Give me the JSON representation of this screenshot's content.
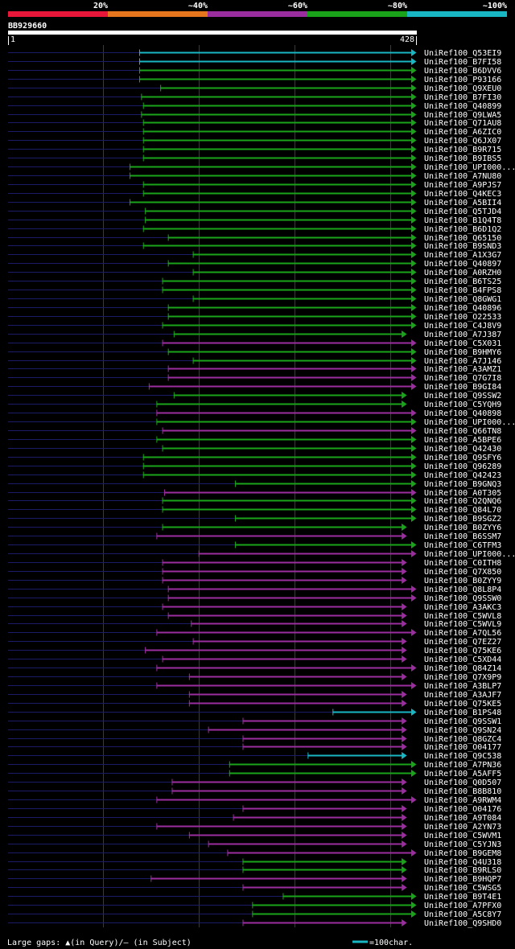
{
  "query_id": "BB929660",
  "legend": {
    "labels": [
      "20%",
      "~40%",
      "~60%",
      "~80%",
      "~100%"
    ],
    "colors": [
      "#e8173a",
      "#e5761e",
      "#9b2e9e",
      "#1aa31a",
      "#19b6c4"
    ]
  },
  "ruler": {
    "start_label": "1",
    "end_label": "428"
  },
  "footer": {
    "gaps_text": "Large gaps: ▲(in Query)/– (in Subject)",
    "scale_text": "=100char."
  },
  "chart_data": {
    "type": "alignment",
    "query_length": 428,
    "x": [
      1,
      428
    ],
    "hits": [
      {
        "name": "UniRef100_Q53EI9",
        "start": 138,
        "end": 428,
        "identity": "~100%"
      },
      {
        "name": "UniRef100_B7FI58",
        "start": 138,
        "end": 428,
        "identity": "~100%"
      },
      {
        "name": "UniRef100_B6DVV6",
        "start": 138,
        "end": 428,
        "identity": "~80%"
      },
      {
        "name": "UniRef100_P93166",
        "start": 138,
        "end": 428,
        "identity": "~80%"
      },
      {
        "name": "UniRef100_Q9XEU0",
        "start": 160,
        "end": 428,
        "identity": "~80%"
      },
      {
        "name": "UniRef100_B7FI30",
        "start": 140,
        "end": 428,
        "identity": "~80%"
      },
      {
        "name": "UniRef100_Q40899",
        "start": 142,
        "end": 428,
        "identity": "~80%"
      },
      {
        "name": "UniRef100_Q9LWA5",
        "start": 140,
        "end": 428,
        "identity": "~80%"
      },
      {
        "name": "UniRef100_Q71AU8",
        "start": 142,
        "end": 428,
        "identity": "~80%"
      },
      {
        "name": "UniRef100_A6ZIC0",
        "start": 142,
        "end": 428,
        "identity": "~80%"
      },
      {
        "name": "UniRef100_Q6JX07",
        "start": 142,
        "end": 428,
        "identity": "~80%"
      },
      {
        "name": "UniRef100_B9R715",
        "start": 142,
        "end": 428,
        "identity": "~80%"
      },
      {
        "name": "UniRef100_B9IBS5",
        "start": 142,
        "end": 428,
        "identity": "~80%"
      },
      {
        "name": "UniRef100_UPI000...",
        "start": 128,
        "end": 428,
        "identity": "~80%"
      },
      {
        "name": "UniRef100_A7NU80",
        "start": 128,
        "end": 428,
        "identity": "~80%"
      },
      {
        "name": "UniRef100_A9PJS7",
        "start": 142,
        "end": 428,
        "identity": "~80%"
      },
      {
        "name": "UniRef100_Q4KEC3",
        "start": 142,
        "end": 428,
        "identity": "~80%"
      },
      {
        "name": "UniRef100_A5BII4",
        "start": 128,
        "end": 428,
        "identity": "~80%"
      },
      {
        "name": "UniRef100_Q5TJD4",
        "start": 144,
        "end": 428,
        "identity": "~80%"
      },
      {
        "name": "UniRef100_B1Q4T8",
        "start": 144,
        "end": 428,
        "identity": "~80%"
      },
      {
        "name": "UniRef100_B6D1Q2",
        "start": 142,
        "end": 428,
        "identity": "~80%"
      },
      {
        "name": "UniRef100_Q65150",
        "start": 168,
        "end": 428,
        "identity": "~80%"
      },
      {
        "name": "UniRef100_B9SND3",
        "start": 142,
        "end": 428,
        "identity": "~80%"
      },
      {
        "name": "UniRef100_A1X3G7",
        "start": 194,
        "end": 428,
        "identity": "~80%"
      },
      {
        "name": "UniRef100_Q40897",
        "start": 168,
        "end": 428,
        "identity": "~80%"
      },
      {
        "name": "UniRef100_A0RZH0",
        "start": 194,
        "end": 428,
        "identity": "~80%"
      },
      {
        "name": "UniRef100_B6TS25",
        "start": 162,
        "end": 428,
        "identity": "~80%"
      },
      {
        "name": "UniRef100_B4FPS8",
        "start": 162,
        "end": 428,
        "identity": "~80%"
      },
      {
        "name": "UniRef100_Q8GWG1",
        "start": 194,
        "end": 428,
        "identity": "~80%"
      },
      {
        "name": "UniRef100_Q40896",
        "start": 168,
        "end": 428,
        "identity": "~80%"
      },
      {
        "name": "UniRef100_O22533",
        "start": 168,
        "end": 428,
        "identity": "~80%"
      },
      {
        "name": "UniRef100_C4J8V9",
        "start": 162,
        "end": 428,
        "identity": "~80%"
      },
      {
        "name": "UniRef100_A7J387",
        "start": 174,
        "end": 418,
        "identity": "~80%"
      },
      {
        "name": "UniRef100_C5X031",
        "start": 162,
        "end": 428,
        "identity": "~60%"
      },
      {
        "name": "UniRef100_B9HMY6",
        "start": 168,
        "end": 428,
        "identity": "~80%"
      },
      {
        "name": "UniRef100_A7J146",
        "start": 194,
        "end": 428,
        "identity": "~80%"
      },
      {
        "name": "UniRef100_A3AMZ1",
        "start": 168,
        "end": 428,
        "identity": "~60%"
      },
      {
        "name": "UniRef100_Q7G7I8",
        "start": 168,
        "end": 428,
        "identity": "~60%"
      },
      {
        "name": "UniRef100_B9GI84",
        "start": 148,
        "end": 428,
        "identity": "~60%"
      },
      {
        "name": "UniRef100_Q9SSW2",
        "start": 174,
        "end": 418,
        "identity": "~80%"
      },
      {
        "name": "UniRef100_C5YQH9",
        "start": 156,
        "end": 418,
        "identity": "~80%"
      },
      {
        "name": "UniRef100_Q40898",
        "start": 156,
        "end": 428,
        "identity": "~60%"
      },
      {
        "name": "UniRef100_UPI000...",
        "start": 156,
        "end": 428,
        "identity": "~80%"
      },
      {
        "name": "UniRef100_Q66TN8",
        "start": 162,
        "end": 428,
        "identity": "~60%"
      },
      {
        "name": "UniRef100_A5BPE6",
        "start": 156,
        "end": 428,
        "identity": "~80%"
      },
      {
        "name": "UniRef100_Q42430",
        "start": 162,
        "end": 428,
        "identity": "~80%"
      },
      {
        "name": "UniRef100_Q9SFY6",
        "start": 142,
        "end": 428,
        "identity": "~80%"
      },
      {
        "name": "UniRef100_Q96289",
        "start": 142,
        "end": 428,
        "identity": "~80%"
      },
      {
        "name": "UniRef100_Q42423",
        "start": 142,
        "end": 428,
        "identity": "~80%"
      },
      {
        "name": "UniRef100_B9GNQ3",
        "start": 238,
        "end": 428,
        "identity": "~80%"
      },
      {
        "name": "UniRef100_A0T305",
        "start": 164,
        "end": 428,
        "identity": "~60%"
      },
      {
        "name": "UniRef100_Q2QNQ6",
        "start": 162,
        "end": 428,
        "identity": "~80%"
      },
      {
        "name": "UniRef100_Q84L70",
        "start": 162,
        "end": 428,
        "identity": "~80%"
      },
      {
        "name": "UniRef100_B9SGZ2",
        "start": 238,
        "end": 428,
        "identity": "~80%"
      },
      {
        "name": "UniRef100_B0ZYY6",
        "start": 162,
        "end": 418,
        "identity": "~80%"
      },
      {
        "name": "UniRef100_B6SSM7",
        "start": 156,
        "end": 418,
        "identity": "~60%"
      },
      {
        "name": "UniRef100_C6TFM3",
        "start": 238,
        "end": 428,
        "identity": "~80%"
      },
      {
        "name": "UniRef100_UPI000...",
        "start": 200,
        "end": 428,
        "identity": "~60%"
      },
      {
        "name": "UniRef100_C0ITH8",
        "start": 162,
        "end": 418,
        "identity": "~60%"
      },
      {
        "name": "UniRef100_Q7X850",
        "start": 162,
        "end": 418,
        "identity": "~60%"
      },
      {
        "name": "UniRef100_B0ZYY9",
        "start": 162,
        "end": 418,
        "identity": "~60%"
      },
      {
        "name": "UniRef100_Q8L8P4",
        "start": 168,
        "end": 428,
        "identity": "~60%"
      },
      {
        "name": "UniRef100_Q9SSW0",
        "start": 168,
        "end": 428,
        "identity": "~60%"
      },
      {
        "name": "UniRef100_A3AKC3",
        "start": 162,
        "end": 418,
        "identity": "~60%"
      },
      {
        "name": "UniRef100_C5WVL8",
        "start": 168,
        "end": 418,
        "identity": "~60%"
      },
      {
        "name": "UniRef100_C5WVL9",
        "start": 192,
        "end": 418,
        "identity": "~60%"
      },
      {
        "name": "UniRef100_A7QL56",
        "start": 156,
        "end": 428,
        "identity": "~60%"
      },
      {
        "name": "UniRef100_Q7EZ27",
        "start": 194,
        "end": 418,
        "identity": "~60%"
      },
      {
        "name": "UniRef100_Q75KE6",
        "start": 144,
        "end": 418,
        "identity": "~60%"
      },
      {
        "name": "UniRef100_C5XD44",
        "start": 162,
        "end": 418,
        "identity": "~60%"
      },
      {
        "name": "UniRef100_Q84Z14",
        "start": 156,
        "end": 428,
        "identity": "~60%"
      },
      {
        "name": "UniRef100_Q7X9P9",
        "start": 190,
        "end": 418,
        "identity": "~60%"
      },
      {
        "name": "UniRef100_A3BLP7",
        "start": 156,
        "end": 428,
        "identity": "~60%"
      },
      {
        "name": "UniRef100_A3AJF7",
        "start": 190,
        "end": 418,
        "identity": "~60%"
      },
      {
        "name": "UniRef100_Q75KE5",
        "start": 190,
        "end": 418,
        "identity": "~60%"
      },
      {
        "name": "UniRef100_B1PS48",
        "start": 340,
        "end": 428,
        "identity": "~100%"
      },
      {
        "name": "UniRef100_Q9SSW1",
        "start": 246,
        "end": 418,
        "identity": "~60%"
      },
      {
        "name": "UniRef100_Q9SN24",
        "start": 210,
        "end": 418,
        "identity": "~60%"
      },
      {
        "name": "UniRef100_Q8GZC4",
        "start": 246,
        "end": 418,
        "identity": "~60%"
      },
      {
        "name": "UniRef100_O04177",
        "start": 246,
        "end": 418,
        "identity": "~60%"
      },
      {
        "name": "UniRef100_Q9C538",
        "start": 314,
        "end": 418,
        "identity": "~100%"
      },
      {
        "name": "UniRef100_A7PN36",
        "start": 232,
        "end": 428,
        "identity": "~80%"
      },
      {
        "name": "UniRef100_A5AFF5",
        "start": 232,
        "end": 428,
        "identity": "~80%"
      },
      {
        "name": "UniRef100_Q0D507",
        "start": 172,
        "end": 418,
        "identity": "~60%"
      },
      {
        "name": "UniRef100_B8B810",
        "start": 172,
        "end": 418,
        "identity": "~60%"
      },
      {
        "name": "UniRef100_A9RWM4",
        "start": 156,
        "end": 428,
        "identity": "~60%"
      },
      {
        "name": "UniRef100_O04176",
        "start": 246,
        "end": 418,
        "identity": "~60%"
      },
      {
        "name": "UniRef100_A9T084",
        "start": 236,
        "end": 418,
        "identity": "~60%"
      },
      {
        "name": "UniRef100_A2YN73",
        "start": 156,
        "end": 418,
        "identity": "~60%"
      },
      {
        "name": "UniRef100_C5WVM1",
        "start": 190,
        "end": 418,
        "identity": "~60%"
      },
      {
        "name": "UniRef100_C5YJN3",
        "start": 210,
        "end": 418,
        "identity": "~60%"
      },
      {
        "name": "UniRef100_B9GEM8",
        "start": 230,
        "end": 428,
        "identity": "~60%"
      },
      {
        "name": "UniRef100_Q4U318",
        "start": 246,
        "end": 418,
        "identity": "~80%"
      },
      {
        "name": "UniRef100_B9RLS0",
        "start": 246,
        "end": 418,
        "identity": "~80%"
      },
      {
        "name": "UniRef100_B9HQP7",
        "start": 150,
        "end": 418,
        "identity": "~60%"
      },
      {
        "name": "UniRef100_C5WSG5",
        "start": 246,
        "end": 418,
        "identity": "~60%"
      },
      {
        "name": "UniRef100_B9T4E1",
        "start": 288,
        "end": 428,
        "identity": "~80%"
      },
      {
        "name": "UniRef100_A7PFX0",
        "start": 256,
        "end": 428,
        "identity": "~80%"
      },
      {
        "name": "UniRef100_A5C8Y7",
        "start": 256,
        "end": 428,
        "identity": "~80%"
      },
      {
        "name": "UniRef100_Q9SHD0",
        "start": 246,
        "end": 418,
        "identity": "~60%"
      }
    ]
  }
}
